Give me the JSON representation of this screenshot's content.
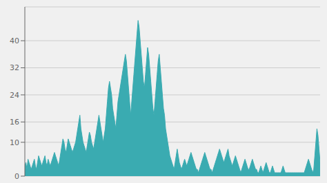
{
  "chart_data": {
    "type": "area",
    "values": [
      3,
      4,
      2,
      5,
      4,
      3,
      2,
      3,
      4,
      5,
      3,
      2,
      4,
      6,
      5,
      4,
      3,
      4,
      5,
      6,
      4,
      3,
      5,
      4,
      3,
      4,
      5,
      6,
      7,
      6,
      5,
      4,
      3,
      5,
      7,
      9,
      11,
      10,
      8,
      7,
      9,
      11,
      10,
      9,
      8,
      7,
      8,
      9,
      10,
      12,
      14,
      16,
      18,
      14,
      12,
      10,
      9,
      8,
      7,
      9,
      11,
      13,
      12,
      10,
      9,
      8,
      10,
      12,
      14,
      16,
      18,
      16,
      14,
      12,
      10,
      12,
      14,
      18,
      22,
      26,
      28,
      26,
      24,
      20,
      18,
      16,
      14,
      18,
      22,
      24,
      26,
      28,
      30,
      32,
      34,
      36,
      34,
      30,
      26,
      22,
      18,
      22,
      26,
      30,
      34,
      38,
      42,
      46,
      44,
      40,
      36,
      32,
      28,
      26,
      30,
      34,
      38,
      36,
      32,
      28,
      24,
      20,
      18,
      22,
      26,
      30,
      34,
      36,
      32,
      28,
      24,
      20,
      18,
      14,
      12,
      10,
      8,
      6,
      5,
      4,
      3,
      2,
      4,
      6,
      8,
      6,
      4,
      3,
      2,
      3,
      4,
      5,
      4,
      3,
      4,
      5,
      6,
      7,
      6,
      5,
      4,
      3,
      2,
      2,
      1,
      2,
      3,
      4,
      5,
      6,
      7,
      6,
      5,
      4,
      3,
      2,
      2,
      1,
      2,
      3,
      4,
      5,
      6,
      7,
      8,
      7,
      6,
      5,
      4,
      5,
      6,
      7,
      8,
      6,
      5,
      4,
      3,
      4,
      5,
      6,
      5,
      4,
      3,
      2,
      1,
      2,
      3,
      4,
      5,
      4,
      3,
      2,
      2,
      3,
      4,
      5,
      4,
      3,
      2,
      2,
      1,
      1,
      2,
      3,
      2,
      1,
      2,
      3,
      4,
      3,
      2,
      1,
      1,
      2,
      3,
      2,
      1,
      1,
      1,
      1,
      1,
      1,
      1,
      2,
      3,
      2,
      1,
      1,
      1,
      1,
      1,
      1,
      1,
      1,
      1,
      1,
      1,
      1,
      1,
      1,
      1,
      1,
      1,
      1,
      1,
      2,
      3,
      4,
      5,
      4,
      3,
      2,
      1,
      2,
      6,
      10,
      14,
      12,
      8,
      4
    ],
    "color": "#3aabb1",
    "ylim": [
      0,
      50
    ],
    "yticks": [
      0,
      10,
      16,
      24,
      32,
      40
    ],
    "grid": true,
    "tick_labels": "y"
  }
}
